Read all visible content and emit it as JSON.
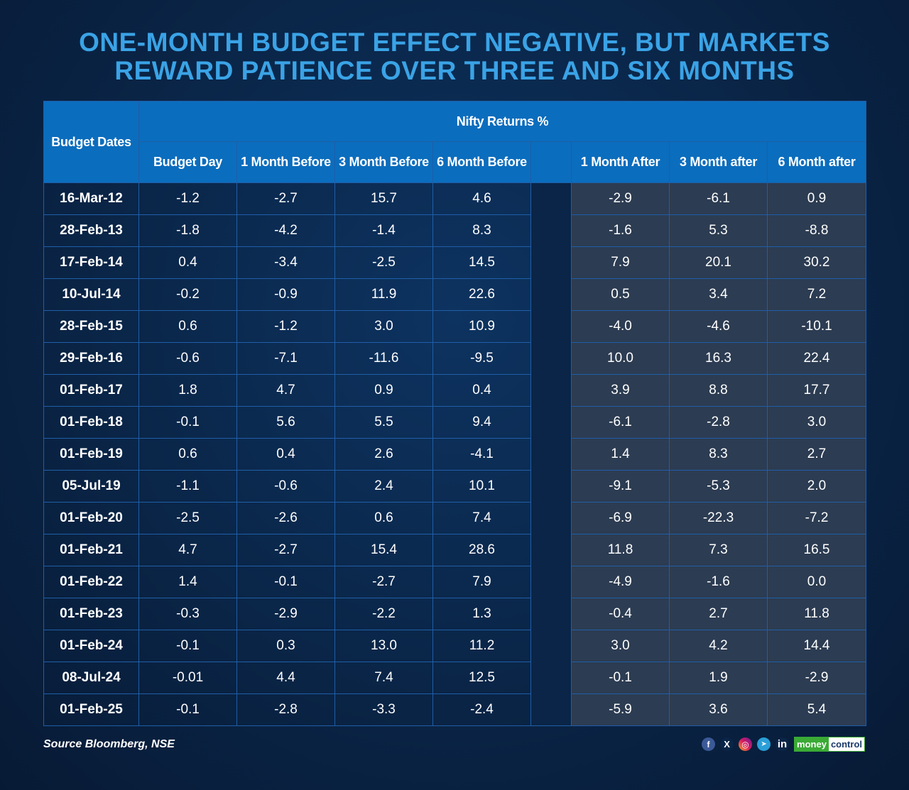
{
  "title_line1": "ONE-MONTH BUDGET EFFECT NEGATIVE, BUT MARKETS",
  "title_line2": "REWARD PATIENCE OVER THREE AND SIX MONTHS",
  "headers": {
    "dates": "Budget Dates",
    "group": "Nifty Returns %",
    "budget_day": "Budget Day",
    "m1_before": "1 Month Before",
    "m3_before": "3 Month Before",
    "m6_before": "6 Month Before",
    "m1_after": "1 Month After",
    "m3_after": "3 Month after",
    "m6_after": "6 Month after"
  },
  "source": "Source Bloomberg, NSE",
  "logo": {
    "money": "money",
    "control": "control"
  },
  "socials": {
    "facebook": "f",
    "x": "X",
    "instagram": "◎",
    "telegram": "➤",
    "linkedin": "in"
  },
  "colors": {
    "title": "#3aa3e6",
    "header_bg": "#0b6dbd",
    "background": "#0a2547",
    "after_bg": "#2c3c52"
  },
  "chart_data": {
    "type": "table",
    "title": "ONE-MONTH BUDGET EFFECT NEGATIVE, BUT MARKETS REWARD PATIENCE OVER THREE AND SIX MONTHS",
    "columns": [
      "Budget Dates",
      "Budget Day",
      "1 Month Before",
      "3 Month Before",
      "6 Month Before",
      "1 Month After",
      "3 Month after",
      "6 Month after"
    ],
    "rows": [
      {
        "date": "16-Mar-12",
        "values": [
          "-1.2",
          "-2.7",
          "15.7",
          "4.6",
          "-2.9",
          "-6.1",
          "0.9"
        ]
      },
      {
        "date": "28-Feb-13",
        "values": [
          "-1.8",
          "-4.2",
          "-1.4",
          "8.3",
          "-1.6",
          "5.3",
          "-8.8"
        ]
      },
      {
        "date": "17-Feb-14",
        "values": [
          "0.4",
          "-3.4",
          "-2.5",
          "14.5",
          "7.9",
          "20.1",
          "30.2"
        ]
      },
      {
        "date": "10-Jul-14",
        "values": [
          "-0.2",
          "-0.9",
          "11.9",
          "22.6",
          "0.5",
          "3.4",
          "7.2"
        ]
      },
      {
        "date": "28-Feb-15",
        "values": [
          "0.6",
          "-1.2",
          "3.0",
          "10.9",
          "-4.0",
          "-4.6",
          "-10.1"
        ]
      },
      {
        "date": "29-Feb-16",
        "values": [
          "-0.6",
          "-7.1",
          "-11.6",
          "-9.5",
          "10.0",
          "16.3",
          "22.4"
        ]
      },
      {
        "date": "01-Feb-17",
        "values": [
          "1.8",
          "4.7",
          "0.9",
          "0.4",
          "3.9",
          "8.8",
          "17.7"
        ]
      },
      {
        "date": "01-Feb-18",
        "values": [
          "-0.1",
          "5.6",
          "5.5",
          "9.4",
          "-6.1",
          "-2.8",
          "3.0"
        ]
      },
      {
        "date": "01-Feb-19",
        "values": [
          "0.6",
          "0.4",
          "2.6",
          "-4.1",
          "1.4",
          "8.3",
          "2.7"
        ]
      },
      {
        "date": "05-Jul-19",
        "values": [
          "-1.1",
          "-0.6",
          "2.4",
          "10.1",
          "-9.1",
          "-5.3",
          "2.0"
        ]
      },
      {
        "date": "01-Feb-20",
        "values": [
          "-2.5",
          "-2.6",
          "0.6",
          "7.4",
          "-6.9",
          "-22.3",
          "-7.2"
        ]
      },
      {
        "date": "01-Feb-21",
        "values": [
          "4.7",
          "-2.7",
          "15.4",
          "28.6",
          "11.8",
          "7.3",
          "16.5"
        ]
      },
      {
        "date": "01-Feb-22",
        "values": [
          "1.4",
          "-0.1",
          "-2.7",
          "7.9",
          "-4.9",
          "-1.6",
          "0.0"
        ]
      },
      {
        "date": "01-Feb-23",
        "values": [
          "-0.3",
          "-2.9",
          "-2.2",
          "1.3",
          "-0.4",
          "2.7",
          "11.8"
        ]
      },
      {
        "date": "01-Feb-24",
        "values": [
          "-0.1",
          "0.3",
          "13.0",
          "11.2",
          "3.0",
          "4.2",
          "14.4"
        ]
      },
      {
        "date": "08-Jul-24",
        "values": [
          "-0.01",
          "4.4",
          "7.4",
          "12.5",
          "-0.1",
          "1.9",
          "-2.9"
        ]
      },
      {
        "date": "01-Feb-25",
        "values": [
          "-0.1",
          "-2.8",
          "-3.3",
          "-2.4",
          "-5.9",
          "3.6",
          "5.4"
        ]
      }
    ]
  }
}
